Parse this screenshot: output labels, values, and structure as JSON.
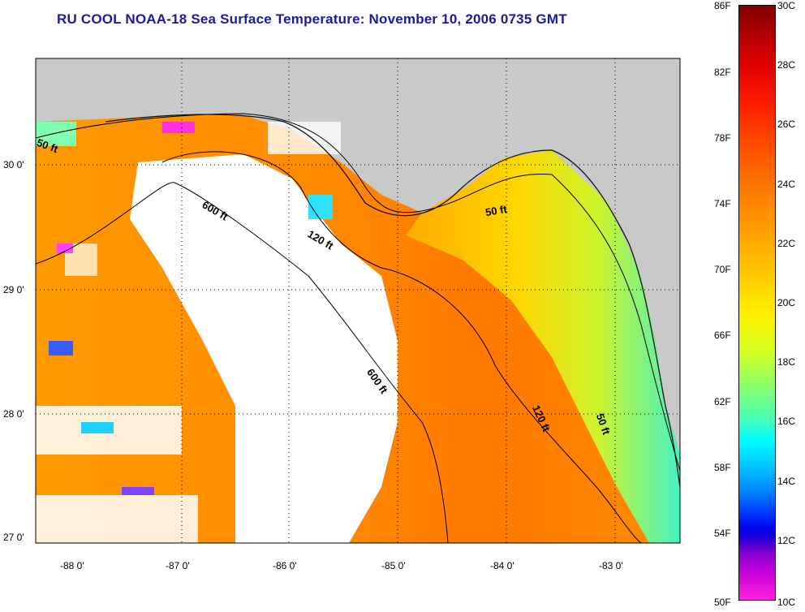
{
  "title": "RU COOL  NOAA-18  Sea Surface Temperature:  November 10, 2006 0735 GMT",
  "map": {
    "lat_labels": [
      "30 0'",
      "29 0'",
      "28 0'",
      "27 0'"
    ],
    "lon_labels": [
      "-88 0'",
      "-87 0'",
      "-86 0'",
      "-85 0'",
      "-84 0'",
      "-83 0'"
    ],
    "contour_labels": [
      "50 ft",
      "600 ft",
      "120 ft",
      "50 ft",
      "600 ft",
      "120 ft",
      "50 ft"
    ]
  },
  "colorbar": {
    "fahrenheit_labels": [
      "86F",
      "82F",
      "78F",
      "74F",
      "70F",
      "66F",
      "62F",
      "58F",
      "54F",
      "50F"
    ],
    "celsius_labels": [
      "30C",
      "28C",
      "26C",
      "24C",
      "22C",
      "20C",
      "18C",
      "16C",
      "14C",
      "12C",
      "10C"
    ]
  },
  "colors": {
    "title": "#1a1aa6",
    "land": "#c9c9c9",
    "cloud": "#ffffff"
  }
}
